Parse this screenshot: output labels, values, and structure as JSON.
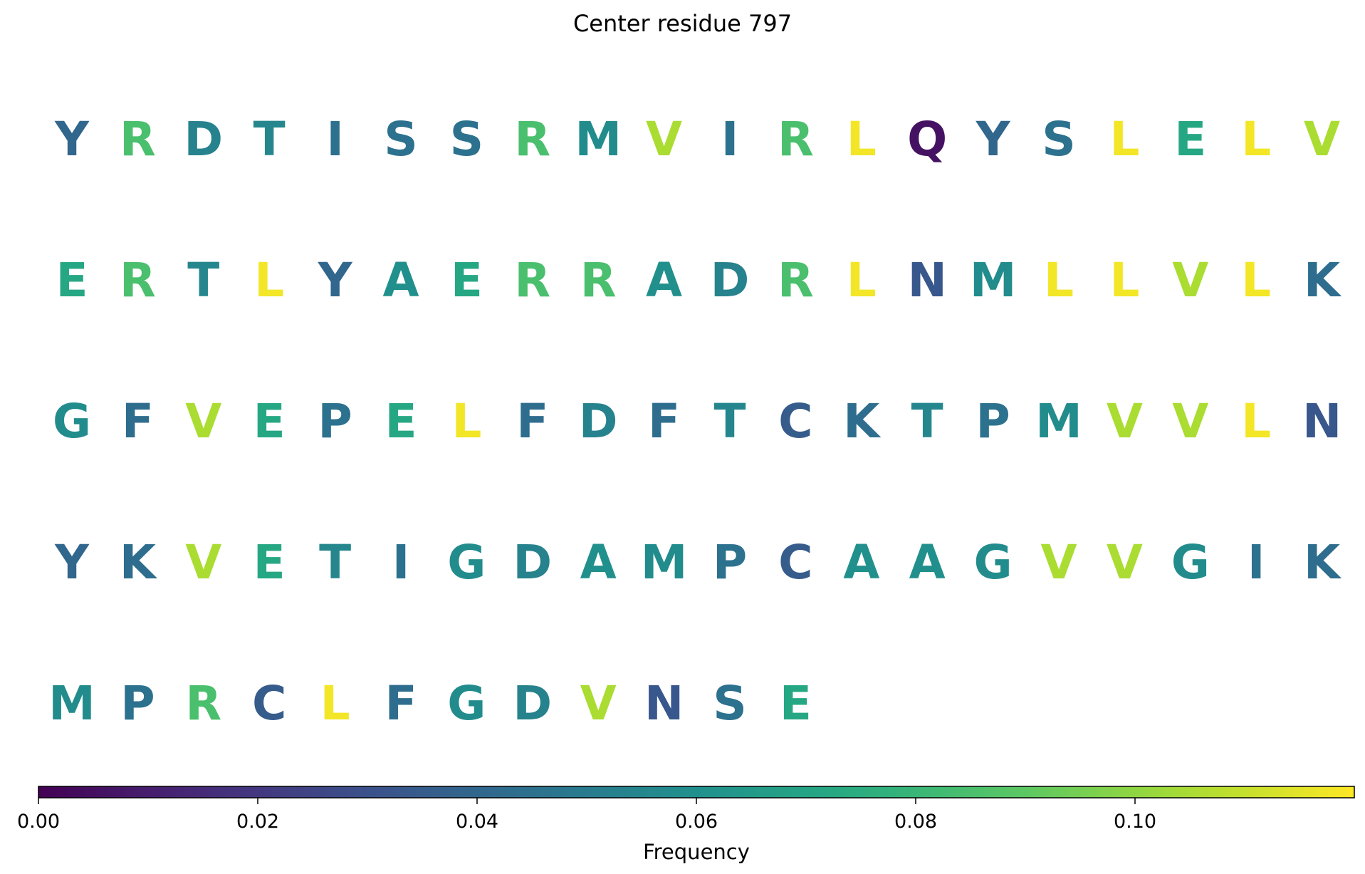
{
  "chart_data": {
    "type": "heatmap",
    "title": "Center residue 797",
    "colorbar": {
      "label": "Frequency",
      "colormap": "viridis",
      "range": [
        0.0,
        0.12
      ],
      "ticks": [
        0.0,
        0.02,
        0.04,
        0.06,
        0.08,
        0.1
      ],
      "tick_labels": [
        "0.00",
        "0.02",
        "0.04",
        "0.06",
        "0.08",
        "0.10"
      ]
    },
    "residues": [
      {
        "letter": "Y",
        "frequency": 0.04
      },
      {
        "letter": "R",
        "frequency": 0.085
      },
      {
        "letter": "D",
        "frequency": 0.053
      },
      {
        "letter": "T",
        "frequency": 0.055
      },
      {
        "letter": "I",
        "frequency": 0.045
      },
      {
        "letter": "S",
        "frequency": 0.045
      },
      {
        "letter": "S",
        "frequency": 0.045
      },
      {
        "letter": "R",
        "frequency": 0.085
      },
      {
        "letter": "M",
        "frequency": 0.058
      },
      {
        "letter": "V",
        "frequency": 0.105
      },
      {
        "letter": "I",
        "frequency": 0.045
      },
      {
        "letter": "R",
        "frequency": 0.085
      },
      {
        "letter": "L",
        "frequency": 0.118
      },
      {
        "letter": "Q",
        "frequency": 0.006
      },
      {
        "letter": "Y",
        "frequency": 0.04
      },
      {
        "letter": "S",
        "frequency": 0.045
      },
      {
        "letter": "L",
        "frequency": 0.118
      },
      {
        "letter": "E",
        "frequency": 0.072
      },
      {
        "letter": "L",
        "frequency": 0.118
      },
      {
        "letter": "V",
        "frequency": 0.105
      },
      {
        "letter": "E",
        "frequency": 0.072
      },
      {
        "letter": "R",
        "frequency": 0.085
      },
      {
        "letter": "T",
        "frequency": 0.055
      },
      {
        "letter": "L",
        "frequency": 0.118
      },
      {
        "letter": "Y",
        "frequency": 0.04
      },
      {
        "letter": "A",
        "frequency": 0.06
      },
      {
        "letter": "E",
        "frequency": 0.072
      },
      {
        "letter": "R",
        "frequency": 0.085
      },
      {
        "letter": "R",
        "frequency": 0.085
      },
      {
        "letter": "A",
        "frequency": 0.06
      },
      {
        "letter": "D",
        "frequency": 0.053
      },
      {
        "letter": "R",
        "frequency": 0.085
      },
      {
        "letter": "L",
        "frequency": 0.118
      },
      {
        "letter": "N",
        "frequency": 0.033
      },
      {
        "letter": "M",
        "frequency": 0.058
      },
      {
        "letter": "L",
        "frequency": 0.118
      },
      {
        "letter": "L",
        "frequency": 0.118
      },
      {
        "letter": "V",
        "frequency": 0.105
      },
      {
        "letter": "L",
        "frequency": 0.118
      },
      {
        "letter": "K",
        "frequency": 0.043
      },
      {
        "letter": "G",
        "frequency": 0.058
      },
      {
        "letter": "F",
        "frequency": 0.043
      },
      {
        "letter": "V",
        "frequency": 0.105
      },
      {
        "letter": "E",
        "frequency": 0.072
      },
      {
        "letter": "P",
        "frequency": 0.045
      },
      {
        "letter": "E",
        "frequency": 0.072
      },
      {
        "letter": "L",
        "frequency": 0.118
      },
      {
        "letter": "F",
        "frequency": 0.043
      },
      {
        "letter": "D",
        "frequency": 0.053
      },
      {
        "letter": "F",
        "frequency": 0.043
      },
      {
        "letter": "T",
        "frequency": 0.055
      },
      {
        "letter": "C",
        "frequency": 0.035
      },
      {
        "letter": "K",
        "frequency": 0.043
      },
      {
        "letter": "T",
        "frequency": 0.055
      },
      {
        "letter": "P",
        "frequency": 0.045
      },
      {
        "letter": "M",
        "frequency": 0.058
      },
      {
        "letter": "V",
        "frequency": 0.105
      },
      {
        "letter": "V",
        "frequency": 0.105
      },
      {
        "letter": "L",
        "frequency": 0.118
      },
      {
        "letter": "N",
        "frequency": 0.033
      },
      {
        "letter": "Y",
        "frequency": 0.04
      },
      {
        "letter": "K",
        "frequency": 0.043
      },
      {
        "letter": "V",
        "frequency": 0.105
      },
      {
        "letter": "E",
        "frequency": 0.072
      },
      {
        "letter": "T",
        "frequency": 0.055
      },
      {
        "letter": "I",
        "frequency": 0.045
      },
      {
        "letter": "G",
        "frequency": 0.058
      },
      {
        "letter": "D",
        "frequency": 0.053
      },
      {
        "letter": "A",
        "frequency": 0.06
      },
      {
        "letter": "M",
        "frequency": 0.058
      },
      {
        "letter": "P",
        "frequency": 0.045
      },
      {
        "letter": "C",
        "frequency": 0.035
      },
      {
        "letter": "A",
        "frequency": 0.06
      },
      {
        "letter": "A",
        "frequency": 0.06
      },
      {
        "letter": "G",
        "frequency": 0.058
      },
      {
        "letter": "V",
        "frequency": 0.105
      },
      {
        "letter": "V",
        "frequency": 0.105
      },
      {
        "letter": "G",
        "frequency": 0.058
      },
      {
        "letter": "I",
        "frequency": 0.045
      },
      {
        "letter": "K",
        "frequency": 0.043
      },
      {
        "letter": "M",
        "frequency": 0.058
      },
      {
        "letter": "P",
        "frequency": 0.045
      },
      {
        "letter": "R",
        "frequency": 0.085
      },
      {
        "letter": "C",
        "frequency": 0.035
      },
      {
        "letter": "L",
        "frequency": 0.118
      },
      {
        "letter": "F",
        "frequency": 0.043
      },
      {
        "letter": "G",
        "frequency": 0.058
      },
      {
        "letter": "D",
        "frequency": 0.053
      },
      {
        "letter": "V",
        "frequency": 0.105
      },
      {
        "letter": "N",
        "frequency": 0.033
      },
      {
        "letter": "S",
        "frequency": 0.045
      },
      {
        "letter": "E",
        "frequency": 0.072
      }
    ],
    "columns": 20
  }
}
